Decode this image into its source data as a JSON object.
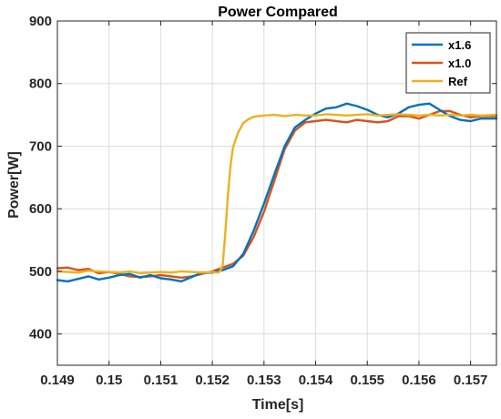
{
  "chart_data": {
    "type": "line",
    "title": "Power Compared",
    "xlabel": "Time[s]",
    "ylabel": "Power[W]",
    "xlim": [
      0.149,
      0.1575
    ],
    "ylim": [
      350,
      900
    ],
    "xticks": [
      0.149,
      0.15,
      0.151,
      0.152,
      0.153,
      0.154,
      0.155,
      0.156,
      0.157
    ],
    "xtick_labels": [
      "0.149",
      "0.15",
      "0.151",
      "0.152",
      "0.153",
      "0.154",
      "0.155",
      "0.156",
      "0.157"
    ],
    "yticks": [
      400,
      500,
      600,
      700,
      800,
      900
    ],
    "ytick_labels": [
      "400",
      "500",
      "600",
      "700",
      "800",
      "900"
    ],
    "grid": true,
    "legend_position": "top-right",
    "series": [
      {
        "name": "x1.6",
        "color": "#0072BD",
        "x": [
          0.149,
          0.1492,
          0.1494,
          0.1496,
          0.1498,
          0.15,
          0.1502,
          0.1504,
          0.1506,
          0.1508,
          0.151,
          0.1512,
          0.1514,
          0.1516,
          0.1518,
          0.152,
          0.1522,
          0.1524,
          0.1526,
          0.1528,
          0.153,
          0.1532,
          0.1534,
          0.1536,
          0.1538,
          0.154,
          0.1542,
          0.1544,
          0.1546,
          0.1548,
          0.155,
          0.1552,
          0.1554,
          0.1556,
          0.1558,
          0.156,
          0.1562,
          0.1564,
          0.1566,
          0.1568,
          0.157,
          0.1572,
          0.1575
        ],
        "y": [
          486,
          484,
          488,
          492,
          487,
          490,
          494,
          496,
          490,
          494,
          489,
          487,
          484,
          491,
          498,
          498,
          502,
          508,
          528,
          565,
          608,
          655,
          700,
          730,
          742,
          752,
          760,
          762,
          768,
          764,
          758,
          750,
          746,
          752,
          762,
          766,
          768,
          758,
          748,
          742,
          740,
          744,
          744
        ]
      },
      {
        "name": "x1.0",
        "color": "#D95319",
        "x": [
          0.149,
          0.1492,
          0.1494,
          0.1496,
          0.1498,
          0.15,
          0.1502,
          0.1504,
          0.1506,
          0.1508,
          0.151,
          0.1512,
          0.1514,
          0.1516,
          0.1518,
          0.152,
          0.1522,
          0.1524,
          0.1526,
          0.1528,
          0.153,
          0.1532,
          0.1534,
          0.1536,
          0.1538,
          0.154,
          0.1542,
          0.1544,
          0.1546,
          0.1548,
          0.155,
          0.1552,
          0.1554,
          0.1556,
          0.1558,
          0.156,
          0.1562,
          0.1564,
          0.1566,
          0.1568,
          0.157,
          0.1572,
          0.1575
        ],
        "y": [
          505,
          506,
          502,
          504,
          497,
          499,
          496,
          492,
          491,
          492,
          494,
          492,
          490,
          492,
          496,
          500,
          506,
          512,
          525,
          555,
          595,
          645,
          695,
          725,
          738,
          740,
          742,
          740,
          738,
          742,
          740,
          738,
          740,
          748,
          748,
          744,
          750,
          756,
          756,
          750,
          746,
          748,
          748
        ]
      },
      {
        "name": "Ref",
        "color": "#EDB120",
        "x": [
          0.149,
          0.1492,
          0.1494,
          0.1496,
          0.1498,
          0.15,
          0.1502,
          0.1504,
          0.1506,
          0.1508,
          0.151,
          0.1512,
          0.1514,
          0.1516,
          0.1518,
          0.152,
          0.1521,
          0.15215,
          0.1522,
          0.15225,
          0.1523,
          0.15235,
          0.1524,
          0.1525,
          0.1526,
          0.1527,
          0.1528,
          0.153,
          0.1532,
          0.1534,
          0.1536,
          0.1538,
          0.154,
          0.1542,
          0.1544,
          0.1546,
          0.1548,
          0.155,
          0.1552,
          0.1554,
          0.1556,
          0.1558,
          0.156,
          0.1562,
          0.1564,
          0.1566,
          0.1568,
          0.157,
          0.1572,
          0.1575
        ],
        "y": [
          500,
          499,
          498,
          501,
          500,
          499,
          498,
          500,
          497,
          498,
          499,
          498,
          500,
          499,
          498,
          499,
          498,
          500,
          510,
          560,
          620,
          668,
          698,
          722,
          737,
          743,
          747,
          749,
          750,
          748,
          750,
          749,
          749,
          751,
          750,
          749,
          750,
          751,
          749,
          750,
          751,
          750,
          749,
          750,
          749,
          750,
          749,
          750,
          749,
          750
        ]
      }
    ]
  }
}
